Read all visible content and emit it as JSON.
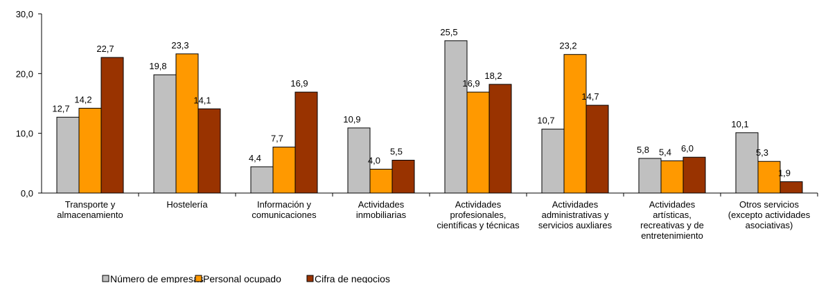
{
  "chart_data": {
    "type": "bar",
    "categories": [
      [
        "Transporte y",
        "almacenamiento"
      ],
      [
        "Hostelería"
      ],
      [
        "Información y",
        "comunicaciones"
      ],
      [
        "Actividades",
        "inmobiliarias"
      ],
      [
        "Actividades",
        "profesionales,",
        "científicas y técnicas"
      ],
      [
        "Actividades",
        "administrativas y",
        "servicios auxliares"
      ],
      [
        "Actividades",
        "artísticas,",
        "recreativas y de",
        "entretenimiento"
      ],
      [
        "Otros servicios",
        "(excepto actividades",
        "asociativas)"
      ]
    ],
    "series": [
      {
        "name": "Número de empresas",
        "color": "#c0c0c0",
        "values": [
          12.7,
          19.8,
          4.4,
          10.9,
          25.5,
          10.7,
          5.8,
          10.1
        ],
        "value_labels": [
          "12,7",
          "19,8",
          "4,4",
          "10,9",
          "25,5",
          "10,7",
          "5,8",
          "10,1"
        ]
      },
      {
        "name": "Personal ocupado",
        "color": "#ff9900",
        "values": [
          14.2,
          23.3,
          7.7,
          4.0,
          16.9,
          23.2,
          5.4,
          5.3
        ],
        "value_labels": [
          "14,2",
          "23,3",
          "7,7",
          "4,0",
          "16,9",
          "23,2",
          "5,4",
          "5,3"
        ]
      },
      {
        "name": "Cifra de negocios",
        "color": "#993300",
        "values": [
          22.7,
          14.1,
          16.9,
          5.5,
          18.2,
          14.7,
          6.0,
          1.9
        ],
        "value_labels": [
          "22,7",
          "14,1",
          "16,9",
          "5,5",
          "18,2",
          "14,7",
          "6,0",
          "1,9"
        ]
      }
    ],
    "ylim": [
      0,
      30
    ],
    "yticks": [
      {
        "value": 0,
        "label": "0,0"
      },
      {
        "value": 10,
        "label": "10,0"
      },
      {
        "value": 20,
        "label": "20,0"
      },
      {
        "value": 30,
        "label": "30,0"
      }
    ],
    "legend": "bottom"
  }
}
